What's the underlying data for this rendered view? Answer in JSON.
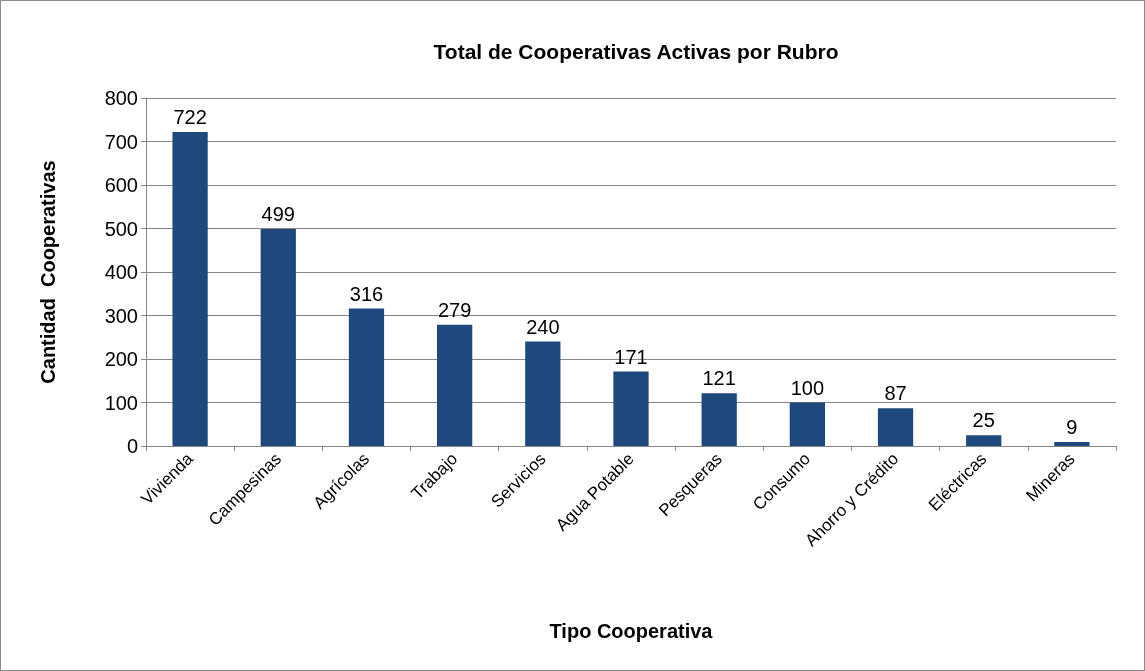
{
  "chart_data": {
    "type": "bar",
    "title": "Total de Cooperativas Activas por Rubro",
    "xlabel": "Tipo Cooperativa",
    "ylabel": "Cantidad  Cooperativas",
    "categories": [
      "Vivienda",
      "Campesinas",
      "Agrícolas",
      "Trabajo",
      "Servicios",
      "Agua Potable",
      "Pesqueras",
      "Consumo",
      "Ahorro y Crédito",
      "Eléctricas",
      "Mineras"
    ],
    "values": [
      722,
      499,
      316,
      279,
      240,
      171,
      121,
      100,
      87,
      25,
      9
    ],
    "color": "#1f497d",
    "ylim": [
      0,
      800
    ],
    "yticks": [
      0,
      100,
      200,
      300,
      400,
      500,
      600,
      700,
      800
    ],
    "grid": "y",
    "data_labels": true
  }
}
